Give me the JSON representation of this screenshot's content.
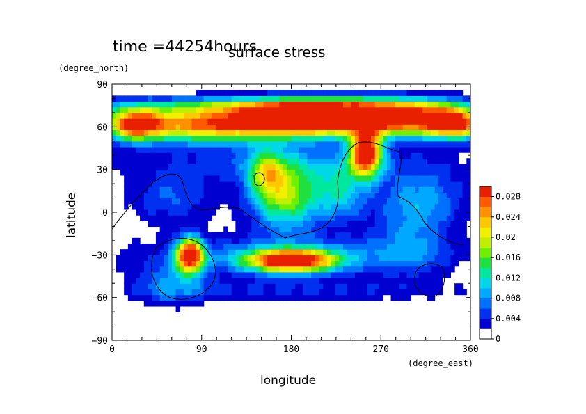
{
  "header": {
    "time_label": "time =44254hours",
    "title": "surface stress"
  },
  "chart_data": {
    "type": "heatmap",
    "title": "surface stress",
    "subtitle": "time =44254hours",
    "xlabel": "longitude",
    "ylabel": "latitude",
    "x_unit": "(degree_east)",
    "y_unit": "(degree_north)",
    "xlim": [
      0,
      360
    ],
    "ylim": [
      -90,
      90
    ],
    "x_ticks": [
      0,
      90,
      180,
      270,
      360
    ],
    "y_ticks": [
      -90,
      -60,
      -30,
      0,
      30,
      60,
      90
    ],
    "grid": false,
    "colorbar": {
      "placement": "right",
      "levels": [
        0,
        0.002,
        0.004,
        0.006,
        0.008,
        0.01,
        0.012,
        0.014,
        0.016,
        0.018,
        0.02,
        0.022,
        0.024,
        0.026,
        0.028,
        0.03
      ],
      "tick_labels": [
        "0",
        "0.004",
        "0.008",
        "0.012",
        "0.016",
        "0.02",
        "0.024",
        "0.028"
      ],
      "colors": [
        "#ffffff",
        "#0000d0",
        "#0030f0",
        "#0070ff",
        "#00a8ff",
        "#00d8e8",
        "#00e8a0",
        "#20e040",
        "#70f000",
        "#c0f000",
        "#f0f000",
        "#ffc800",
        "#ff9000",
        "#ff5a00",
        "#e82000"
      ]
    },
    "field_blobs": [
      {
        "lon": 95,
        "lat": 62,
        "rlon": 75,
        "rlat": 12,
        "peak": 0.026
      },
      {
        "lon": 22,
        "lat": 62,
        "rlon": 28,
        "rlat": 11,
        "peak": 0.024
      },
      {
        "lon": 190,
        "lat": 66,
        "rlon": 60,
        "rlat": 12,
        "peak": 0.03
      },
      {
        "lon": 285,
        "lat": 66,
        "rlon": 70,
        "rlat": 12,
        "peak": 0.03
      },
      {
        "lon": 345,
        "lat": 62,
        "rlon": 30,
        "rlat": 10,
        "peak": 0.022
      },
      {
        "lon": 180,
        "lat": 75,
        "rlon": 170,
        "rlat": 6,
        "peak": 0.012
      },
      {
        "lon": 180,
        "lat": 35,
        "rlon": 170,
        "rlat": 14,
        "peak": 0.005
      },
      {
        "lon": 255,
        "lat": 42,
        "rlon": 16,
        "rlat": 16,
        "peak": 0.03
      },
      {
        "lon": 175,
        "lat": 12,
        "rlon": 35,
        "rlat": 24,
        "peak": 0.018
      },
      {
        "lon": 155,
        "lat": 28,
        "rlon": 18,
        "rlat": 16,
        "peak": 0.012
      },
      {
        "lon": 230,
        "lat": 15,
        "rlon": 25,
        "rlat": 20,
        "peak": 0.01
      },
      {
        "lon": 310,
        "lat": 10,
        "rlon": 45,
        "rlat": 20,
        "peak": 0.008
      },
      {
        "lon": 60,
        "lat": 10,
        "rlon": 45,
        "rlat": 18,
        "peak": 0.006
      },
      {
        "lon": 180,
        "lat": -30,
        "rlon": 150,
        "rlat": 14,
        "peak": 0.007
      },
      {
        "lon": 180,
        "lat": -34,
        "rlon": 45,
        "rlat": 8,
        "peak": 0.03
      },
      {
        "lon": 78,
        "lat": -30,
        "rlon": 14,
        "rlat": 12,
        "peak": 0.03
      },
      {
        "lon": 60,
        "lat": -50,
        "rlon": 35,
        "rlat": 15,
        "peak": 0.007
      },
      {
        "lon": 180,
        "lat": -55,
        "rlon": 170,
        "rlat": 8,
        "peak": 0.004
      },
      {
        "lon": 300,
        "lat": -20,
        "rlon": 40,
        "rlat": 25,
        "peak": 0.006
      }
    ]
  }
}
